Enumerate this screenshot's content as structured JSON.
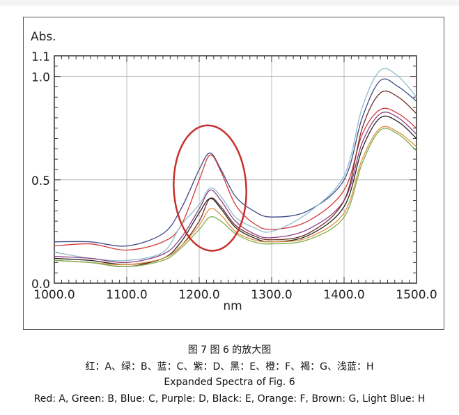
{
  "chart_data": {
    "type": "line",
    "ylabel": "Abs.",
    "xlabel": "nm",
    "xlim": [
      1000,
      1500
    ],
    "ylim": [
      0.0,
      1.1
    ],
    "x_ticks": [
      "1000.0",
      "1100.0",
      "1200.0",
      "1300.0",
      "1400.0",
      "1500.0"
    ],
    "y_ticks": [
      {
        "v": 0.0,
        "label": "0.0"
      },
      {
        "v": 0.5,
        "label": "0.5"
      },
      {
        "v": 1.0,
        "label": "1.0"
      },
      {
        "v": 1.1,
        "label": "1.1"
      }
    ],
    "grid": true,
    "x": [
      1000,
      1050,
      1100,
      1150,
      1175,
      1200,
      1215,
      1230,
      1250,
      1275,
      1300,
      1350,
      1400,
      1425,
      1450,
      1475,
      1500
    ],
    "series": [
      {
        "name": "C",
        "color": "#3b4788",
        "values": [
          0.2,
          0.2,
          0.18,
          0.24,
          0.36,
          0.55,
          0.63,
          0.55,
          0.42,
          0.35,
          0.32,
          0.35,
          0.5,
          0.8,
          0.98,
          0.95,
          0.88
        ]
      },
      {
        "name": "A",
        "color": "#d23a3a",
        "values": [
          0.18,
          0.19,
          0.16,
          0.2,
          0.28,
          0.5,
          0.62,
          0.54,
          0.38,
          0.29,
          0.26,
          0.3,
          0.45,
          0.72,
          0.84,
          0.82,
          0.75
        ]
      },
      {
        "name": "H",
        "color": "#8fbccb",
        "values": [
          0.15,
          0.12,
          0.11,
          0.15,
          0.28,
          0.38,
          0.46,
          0.42,
          0.32,
          0.27,
          0.25,
          0.34,
          0.52,
          0.85,
          1.03,
          1.0,
          0.9
        ]
      },
      {
        "name": "D",
        "color": "#8e3c82",
        "values": [
          0.13,
          0.12,
          0.1,
          0.14,
          0.22,
          0.36,
          0.45,
          0.4,
          0.3,
          0.24,
          0.22,
          0.26,
          0.4,
          0.68,
          0.82,
          0.8,
          0.72
        ]
      },
      {
        "name": "G",
        "color": "#6e2e24",
        "values": [
          0.11,
          0.1,
          0.08,
          0.12,
          0.18,
          0.3,
          0.41,
          0.37,
          0.28,
          0.23,
          0.21,
          0.24,
          0.4,
          0.75,
          0.92,
          0.9,
          0.82
        ]
      },
      {
        "name": "E",
        "color": "#222222",
        "values": [
          0.12,
          0.11,
          0.09,
          0.12,
          0.2,
          0.34,
          0.41,
          0.36,
          0.27,
          0.22,
          0.2,
          0.23,
          0.37,
          0.65,
          0.8,
          0.78,
          0.7
        ]
      },
      {
        "name": "F",
        "color": "#e0913e",
        "values": [
          0.11,
          0.1,
          0.09,
          0.12,
          0.18,
          0.28,
          0.36,
          0.33,
          0.25,
          0.21,
          0.2,
          0.22,
          0.34,
          0.6,
          0.75,
          0.73,
          0.66
        ]
      },
      {
        "name": "B",
        "color": "#7fae4c",
        "values": [
          0.11,
          0.1,
          0.08,
          0.11,
          0.17,
          0.26,
          0.32,
          0.3,
          0.24,
          0.2,
          0.19,
          0.21,
          0.32,
          0.58,
          0.74,
          0.72,
          0.64
        ]
      }
    ],
    "annotation": {
      "type": "ellipse",
      "color": "#c8302c",
      "center_x": 1213,
      "center_y": 0.46
    }
  },
  "caption": {
    "cn_title": "图 7  图 6 的放大图",
    "cn_legend": "红：A、绿：B、蓝：C、紫：D、黑：E、橙：F、褐：G、浅蓝：H",
    "en_title": "Expanded Spectra of Fig. 6",
    "en_legend": "Red: A, Green: B, Blue: C, Purple: D, Black: E, Orange: F, Brown: G, Light Blue: H"
  }
}
